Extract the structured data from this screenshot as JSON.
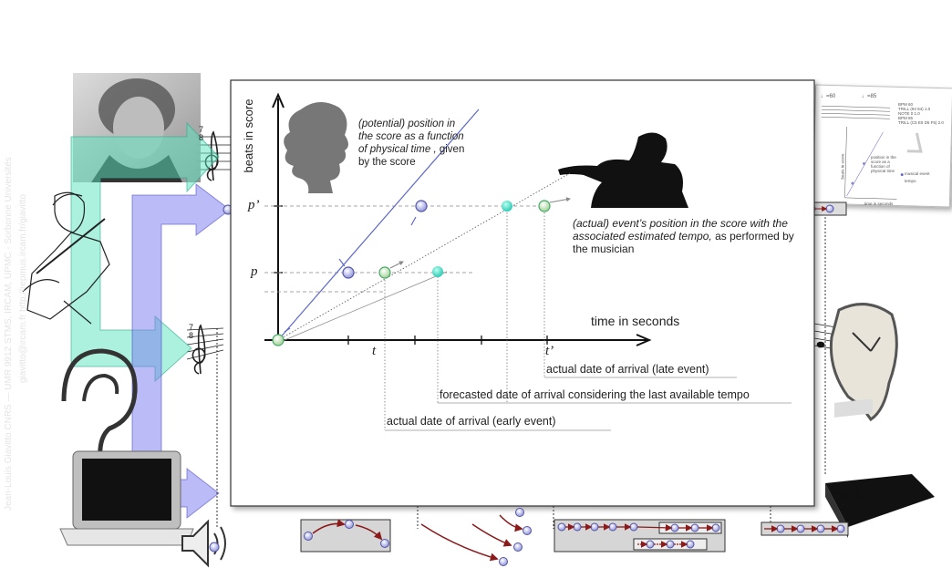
{
  "graph": {
    "y_axis_label": "beats in score",
    "x_axis_label": "time in seconds",
    "p_prime": "p’",
    "p": "p",
    "t": "t",
    "t_prime": "t’",
    "potential_note": {
      "italic": "(potential) position in the score as a function of physical time ,",
      "plain": "given by the score"
    },
    "actual_note": {
      "italic": "(actual) event’s position in the score with the associated estimated tempo,",
      "plain": "as performed by the musician"
    },
    "late_arrival": "actual date of arrival (late event)",
    "forecast_arrival": "forecasted date of arrival considering the last available tempo",
    "early_arrival": "actual date of arrival (early event)"
  },
  "staff_time_signature": {
    "top": "7",
    "bottom": "8"
  },
  "inset": {
    "tempo_1": "♩=60",
    "tempo_2": "♩=85",
    "program": [
      "BPM 60",
      "TRILL (94 84) 1.0",
      "NOTE 0 1.0",
      "BPM 85",
      "TRILL (C5 E5 D5 F5) 2.0"
    ],
    "position_note": "position in the score as a function of physical time",
    "legend_event": "musical event",
    "legend_tempo": "tempo",
    "x_label": "time in seconds",
    "y_label": "beats in score"
  },
  "alarm_clock": "10:02",
  "watermark": [
    "Jean-Louis Giavitto CNRS — UMR 9912 STMS, IRCAM, UPMC - Sorbonne Universités",
    "giavitto@ircam.fr http://repmus.ircam.fr/giavitto"
  ]
}
